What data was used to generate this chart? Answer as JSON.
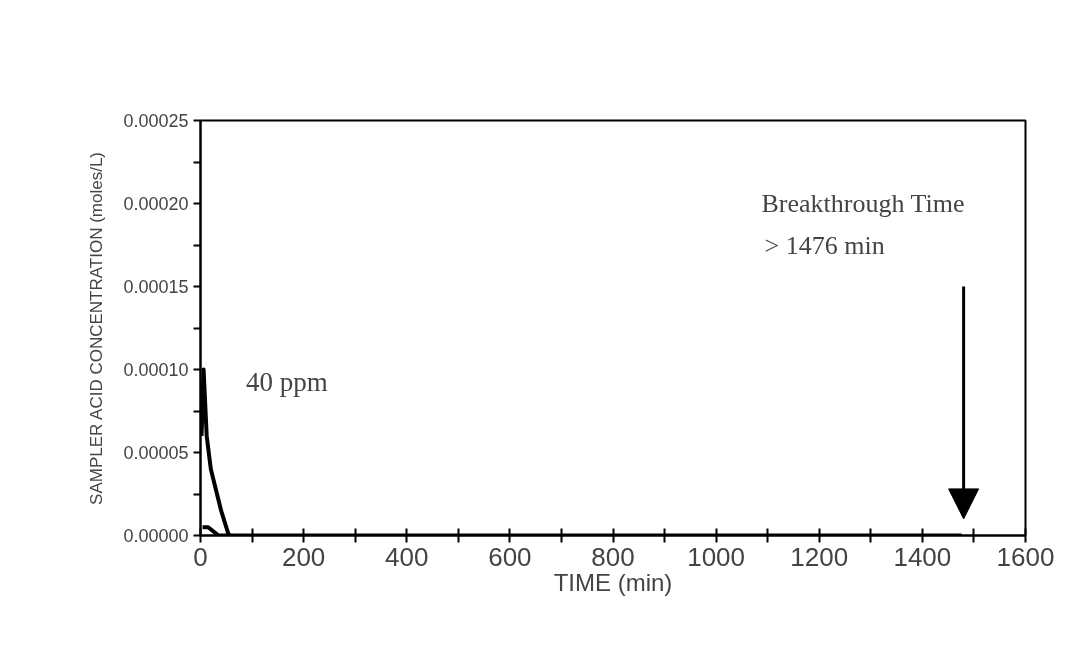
{
  "chart_data": {
    "type": "line",
    "xlabel": "TIME (min)",
    "ylabel": "SAMPLER ACID CONCENTRATION (moles/L)",
    "series": [
      {
        "color": "#000000",
        "x": [
          2,
          6,
          12,
          20,
          28,
          40,
          55,
          80,
          200,
          400,
          600,
          800,
          1000,
          1200,
          1400,
          1476
        ],
        "values": [
          6e-05,
          0.0001,
          6e-05,
          4e-05,
          3e-05,
          1.5e-05,
          0,
          0,
          0,
          0,
          0,
          0,
          0,
          0,
          0,
          0
        ]
      },
      {
        "color": "#000000",
        "x": [
          4,
          15,
          35,
          60
        ],
        "values": [
          5e-06,
          5e-06,
          0,
          0
        ]
      }
    ],
    "xlim": [
      0,
      1600
    ],
    "ylim": [
      0,
      0.00025
    ],
    "xticks": [
      0,
      {
        "value": 100,
        "label": null
      },
      200,
      {
        "value": 300,
        "label": null
      },
      400,
      {
        "value": 500,
        "label": null
      },
      600,
      {
        "value": 700,
        "label": null
      },
      800,
      {
        "value": 900,
        "label": null
      },
      1000,
      {
        "value": 1100,
        "label": null
      },
      1200,
      {
        "value": 1300,
        "label": null
      },
      1400,
      {
        "value": 1500,
        "label": null
      },
      1600
    ],
    "yticks": [
      {
        "value": 0,
        "label": "0.00000"
      },
      {
        "value": 2.5e-05,
        "label": null
      },
      {
        "value": 5e-05,
        "label": "0.00005"
      },
      {
        "value": 7.5e-05,
        "label": null
      },
      {
        "value": 0.0001,
        "label": "0.00010"
      },
      {
        "value": 0.000125,
        "label": null
      },
      {
        "value": 0.00015,
        "label": "0.00015"
      },
      {
        "value": 0.000175,
        "label": null
      },
      {
        "value": 0.0002,
        "label": "0.00020"
      },
      {
        "value": 0.000225,
        "label": null
      },
      {
        "value": 0.00025,
        "label": "0.00025"
      }
    ],
    "annotations": [
      "40 ppm",
      "Breakthrough Time\n> 1476 min"
    ],
    "grid": false,
    "marker": "none",
    "line_style": "solid"
  }
}
